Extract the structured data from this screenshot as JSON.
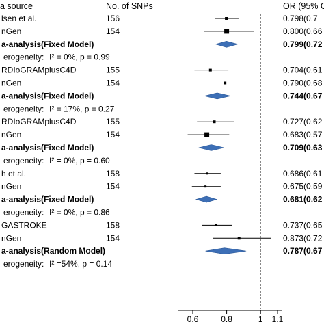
{
  "chart_data": {
    "type": "forest",
    "headers": {
      "source": "a source",
      "snps": "No. of SNPs",
      "or": "OR (95% C"
    },
    "xlabel": "",
    "xlim": [
      0.5,
      1.1
    ],
    "xticks": [
      0.6,
      0.8,
      1,
      1.1
    ],
    "xtick_labels": [
      "0.6",
      "0.8",
      "1",
      "1.1"
    ],
    "reference_line": 1,
    "diamond_color": "#3d6fb6",
    "rows": [
      {
        "kind": "study",
        "label": "lsen et al.",
        "snps": "156",
        "or_text": "0.798(0.7",
        "or": 0.798,
        "lo": 0.73,
        "hi": 0.87,
        "box": "small"
      },
      {
        "kind": "study",
        "label": "nGen",
        "snps": "154",
        "or_text": "0.800(0.66",
        "or": 0.8,
        "lo": 0.665,
        "hi": 0.96,
        "box": "large"
      },
      {
        "kind": "pooled",
        "label": "a-analysis(Fixed Model)",
        "snps": "",
        "or_text": "0.799(0.72",
        "or": 0.799,
        "lo": 0.735,
        "hi": 0.865
      },
      {
        "kind": "het",
        "label": "erogeneity:",
        "i2": "I² = 0%, p = 0.99"
      },
      {
        "kind": "study",
        "label": "RDIoGRAMplusC4D",
        "snps": "155",
        "or_text": "0.704(0.61",
        "or": 0.704,
        "lo": 0.61,
        "hi": 0.81,
        "box": "small"
      },
      {
        "kind": "study",
        "label": "nGen",
        "snps": "154",
        "or_text": "0.790(0.68",
        "or": 0.79,
        "lo": 0.685,
        "hi": 0.91,
        "box": "small"
      },
      {
        "kind": "pooled",
        "label": "a-analysis(Fixed Model)",
        "snps": "",
        "or_text": "0.744(0.67",
        "or": 0.744,
        "lo": 0.67,
        "hi": 0.822
      },
      {
        "kind": "het",
        "label": "erogeneity:",
        "i2": "I² = 17%, p = 0.27"
      },
      {
        "kind": "study",
        "label": "RDIoGRAMplusC4D",
        "snps": "155",
        "or_text": "0.727(0.62",
        "or": 0.727,
        "lo": 0.625,
        "hi": 0.845,
        "box": "small"
      },
      {
        "kind": "study",
        "label": "nGen",
        "snps": "154",
        "or_text": "0.683(0.57",
        "or": 0.683,
        "lo": 0.57,
        "hi": 0.815,
        "box": "large"
      },
      {
        "kind": "pooled",
        "label": "a-analysis(Fixed Model)",
        "snps": "",
        "or_text": "0.709(0.63",
        "or": 0.709,
        "lo": 0.635,
        "hi": 0.785
      },
      {
        "kind": "het",
        "label": "erogeneity:",
        "i2": "I² = 0%, p = 0.60"
      },
      {
        "kind": "study",
        "label": "h et al.",
        "snps": "158",
        "or_text": "0.686(0.61",
        "or": 0.686,
        "lo": 0.61,
        "hi": 0.765,
        "box": "tiny"
      },
      {
        "kind": "study",
        "label": "nGen",
        "snps": "154",
        "or_text": "0.675(0.59",
        "or": 0.675,
        "lo": 0.595,
        "hi": 0.765,
        "box": "tiny"
      },
      {
        "kind": "pooled",
        "label": "a-analysis(Fixed Model)",
        "snps": "",
        "or_text": "0.681(0.62",
        "or": 0.681,
        "lo": 0.62,
        "hi": 0.742
      },
      {
        "kind": "het",
        "label": "erogeneity:",
        "i2": "I² = 0%, p = 0.86"
      },
      {
        "kind": "study",
        "label": "GASTROKE",
        "snps": "158",
        "or_text": "0.737(0.65",
        "or": 0.737,
        "lo": 0.655,
        "hi": 0.83,
        "box": "tiny"
      },
      {
        "kind": "study",
        "label": "nGen",
        "snps": "154",
        "or_text": "0.873(0.72",
        "or": 0.873,
        "lo": 0.72,
        "hi": 1.06,
        "box": "small"
      },
      {
        "kind": "pooled",
        "label": "a-analysis(Random Model)",
        "snps": "",
        "or_text": "0.787(0.67",
        "or": 0.787,
        "lo": 0.675,
        "hi": 0.915
      },
      {
        "kind": "het",
        "label": "erogeneity:",
        "i2": "I² =54%, p = 0.14"
      }
    ]
  }
}
